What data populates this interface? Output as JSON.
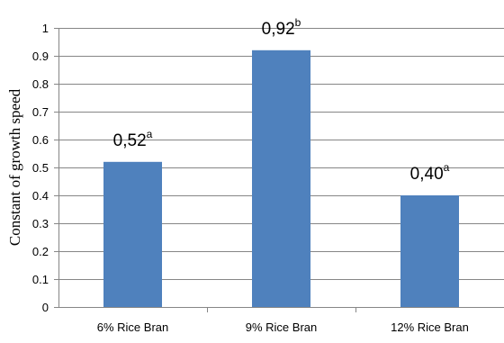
{
  "chart_data": {
    "type": "bar",
    "categories": [
      "6% Rice Bran",
      "9% Rice Bran",
      "12% Rice Bran"
    ],
    "values": [
      0.52,
      0.92,
      0.4
    ],
    "data_labels": [
      {
        "value": "0,52",
        "superscript": "a"
      },
      {
        "value": "0,92",
        "superscript": "b"
      },
      {
        "value": "0,40",
        "superscript": "a"
      }
    ],
    "title": "",
    "xlabel": "",
    "ylabel": "Constant of growth speed",
    "ylim": [
      0,
      1
    ],
    "yticks": [
      "0",
      "0.1",
      "0.2",
      "0.3",
      "0.4",
      "0.5",
      "0.6",
      "0.7",
      "0.8",
      "0.9",
      "1"
    ],
    "grid": true,
    "legend": "none",
    "colors": {
      "bar": "#4f81bd",
      "grid": "#868686",
      "axis": "#868686"
    }
  }
}
